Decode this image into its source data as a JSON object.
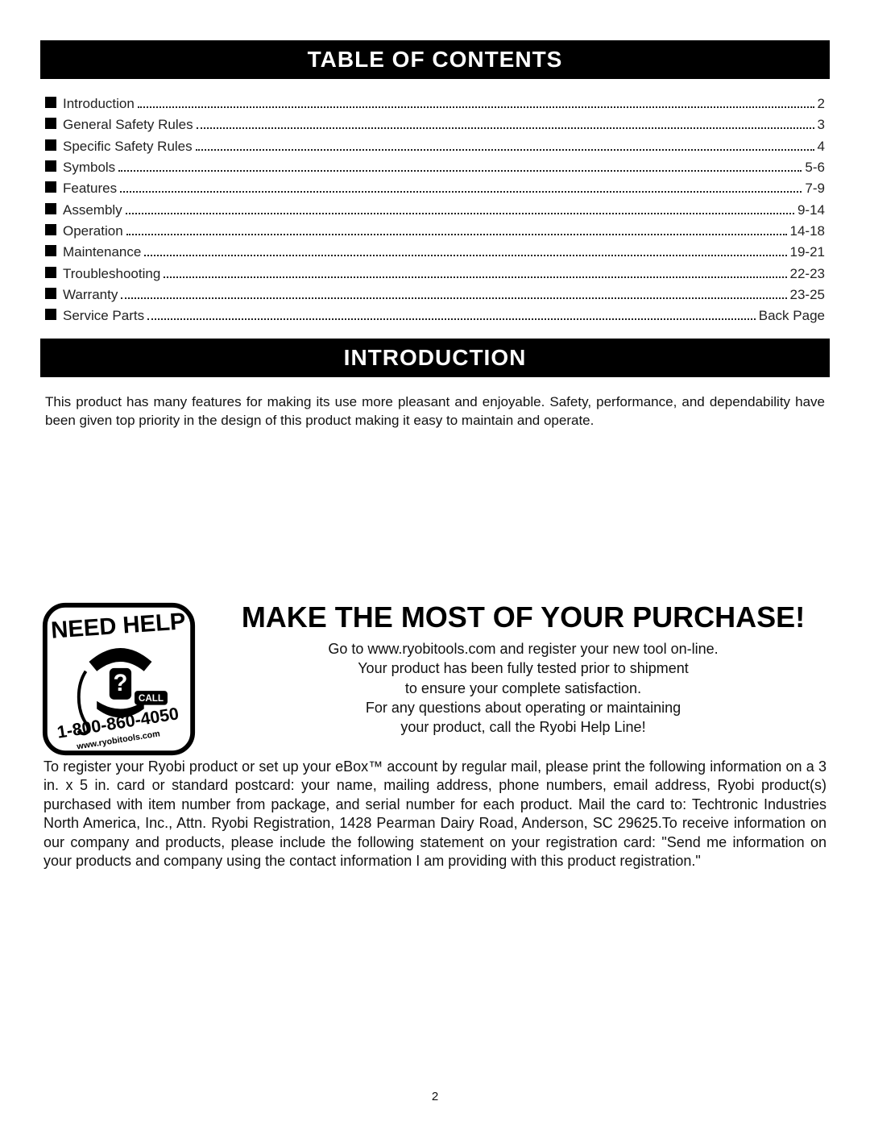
{
  "headers": {
    "toc": "TABLE OF CONTENTS",
    "intro": "INTRODUCTION"
  },
  "toc": {
    "items": [
      {
        "label": "Introduction",
        "page": "2"
      },
      {
        "label": "General Safety Rules",
        "page": "3"
      },
      {
        "label": "Specific Safety Rules",
        "page": "4"
      },
      {
        "label": "Symbols",
        "page": "5-6"
      },
      {
        "label": "Features",
        "page": "7-9"
      },
      {
        "label": "Assembly",
        "page": "9-14"
      },
      {
        "label": "Operation",
        "page": "14-18"
      },
      {
        "label": "Maintenance",
        "page": "19-21"
      },
      {
        "label": "Troubleshooting",
        "page": "22-23"
      },
      {
        "label": "Warranty",
        "page": "23-25"
      },
      {
        "label": "Service Parts",
        "page": "Back Page"
      }
    ]
  },
  "intro": {
    "paragraph": "This product has many features for making its use more pleasant and enjoyable. Safety, performance, and dependability have been given top priority in the design of this product making it easy to maintain and operate."
  },
  "badge": {
    "title": "NEED HELP",
    "call_label": "CALL",
    "phone": "1-800-860-4050",
    "url": "www.ryobitools.com"
  },
  "promo": {
    "title": "MAKE THE MOST OF YOUR PURCHASE!",
    "lines": [
      "Go to www.ryobitools.com and register your new tool on-line.",
      "Your product has been fully tested prior to shipment",
      "to ensure your complete satisfaction.",
      "For any questions about operating or maintaining",
      "your product, call the Ryobi Help Line!"
    ]
  },
  "registration": {
    "paragraph": "To register your Ryobi product or set up your eBox™ account by regular mail, please print the following information on a 3 in. x 5 in. card or standard postcard: your name, mailing address, phone numbers, email address, Ryobi product(s) purchased with item number from package, and serial number for each product. Mail the card to: Techtronic Industries North America, Inc., Attn. Ryobi Registration, 1428 Pearman Dairy Road, Anderson, SC 29625.To receive information on our company and products, please include the following statement on your registration card: \"Send me information on your products and company using the contact information I am providing with this product registration.\""
  },
  "page_number": "2",
  "colors": {
    "header_bg": "#000000",
    "header_fg": "#ffffff",
    "text": "#111111",
    "bullet": "#000000",
    "background": "#ffffff"
  },
  "fonts": {
    "header_size_pt": 21,
    "body_size_pt": 13,
    "promo_title_size_pt": 27
  }
}
